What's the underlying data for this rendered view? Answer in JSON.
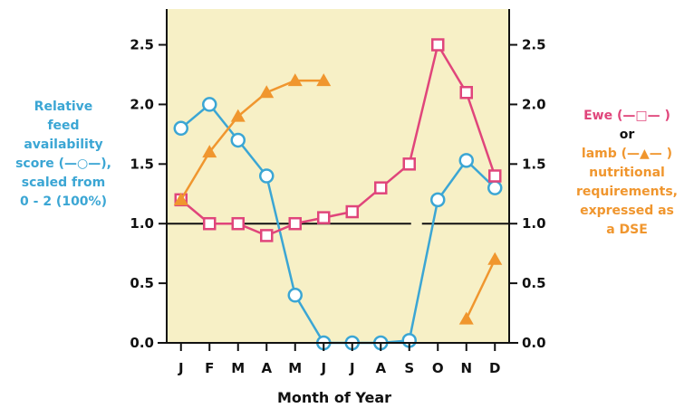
{
  "chart_data": {
    "type": "line",
    "categories": [
      "J",
      "F",
      "M",
      "A",
      "M",
      "J",
      "J",
      "A",
      "S",
      "O",
      "N",
      "D"
    ],
    "xlabel": "Month of Year",
    "ylim": [
      0,
      2.8
    ],
    "yticks": [
      "0.0",
      "0.5",
      "1.0",
      "1.5",
      "2.0",
      "2.5"
    ],
    "reference_line": 1.0,
    "background": "#f7f0c6",
    "series": [
      {
        "key": "feed",
        "marker": "circle",
        "color": "#3ba6d4",
        "values": [
          1.8,
          2.0,
          1.7,
          1.4,
          0.4,
          0.0,
          0.0,
          0.0,
          0.02,
          1.2,
          1.53,
          1.3
        ],
        "segments": [
          [
            0,
            8
          ],
          [
            8,
            11
          ]
        ]
      },
      {
        "key": "ewe",
        "marker": "square",
        "color": "#e0457b",
        "values": [
          1.2,
          1.0,
          1.0,
          0.9,
          1.0,
          1.05,
          1.1,
          1.3,
          1.5,
          2.5,
          2.1,
          1.4
        ],
        "segments": [
          [
            0,
            9
          ],
          [
            9,
            10
          ],
          [
            10,
            11
          ]
        ]
      },
      {
        "key": "lamb",
        "marker": "triangle",
        "color": "#f0962e",
        "values": [
          1.2,
          1.6,
          1.9,
          2.1,
          2.2,
          2.2,
          null,
          null,
          null,
          null,
          0.2,
          0.7
        ],
        "segments": [
          [
            0,
            5
          ],
          [
            10,
            11
          ]
        ]
      }
    ]
  },
  "left_note": {
    "color": "#3ba6d4",
    "lines": [
      "Relative",
      "feed",
      "availability",
      "score (—○—),",
      "scaled from",
      "0 - 2 (100%)"
    ]
  },
  "right_note": {
    "ewe_line": "Ewe (—□— )",
    "ewe_color": "#e0457b",
    "or_line": "or",
    "lamb_lines": [
      "lamb (—▲— )",
      "nutritional",
      "requirements,",
      "expressed as",
      "a DSE"
    ],
    "lamb_color": "#f0962e"
  }
}
